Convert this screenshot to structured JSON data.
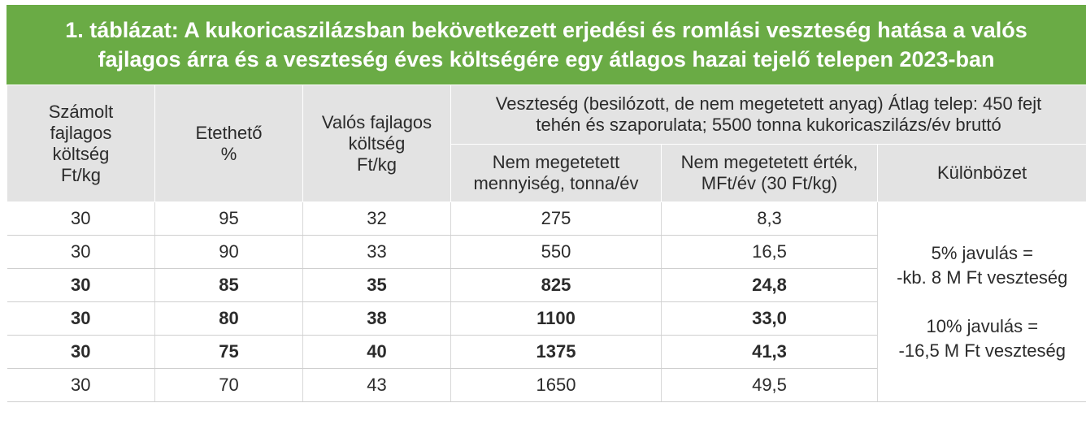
{
  "title": {
    "line1": "1. táblázat: A kukoricaszilázsban bekövetkezett erjedési és romlási veszteség hatása a valós",
    "line2": "fajlagos árra és a veszteség éves költségére egy átlagos hazai tejelő telepen 2023-ban"
  },
  "headers": {
    "col1": [
      "Számolt",
      "fajlagos",
      "költség",
      "Ft/kg"
    ],
    "col2": [
      "Etethető",
      "%"
    ],
    "col3": [
      "Valós fajlagos",
      "költség",
      "Ft/kg"
    ],
    "group": [
      "Veszteség (besilózott, de nem megetetett anyag) Átlag telep: 450 fejt",
      "tehén és szaporulata; 5500 tonna kukoricaszilázs/év bruttó"
    ],
    "sub1": [
      "Nem megetetett",
      "mennyiség, tonna/év"
    ],
    "sub2": [
      "Nem megetetett  érték,",
      "MFt/év (30 Ft/kg)"
    ],
    "sub3": [
      "Különbözet"
    ]
  },
  "rows": [
    {
      "cost": "30",
      "feedable": "95",
      "real": "32",
      "qty": "275",
      "value": "8,3",
      "bold": false
    },
    {
      "cost": "30",
      "feedable": "90",
      "real": "33",
      "qty": "550",
      "value": "16,5",
      "bold": false
    },
    {
      "cost": "30",
      "feedable": "85",
      "real": "35",
      "qty": "825",
      "value": "24,8",
      "bold": true
    },
    {
      "cost": "30",
      "feedable": "80",
      "real": "38",
      "qty": "1100",
      "value": "33,0",
      "bold": true
    },
    {
      "cost": "30",
      "feedable": "75",
      "real": "40",
      "qty": "1375",
      "value": "41,3",
      "bold": true
    },
    {
      "cost": "30",
      "feedable": "70",
      "real": "43",
      "qty": "1650",
      "value": "49,5",
      "bold": false
    }
  ],
  "difference_note": {
    "a1": "5% javulás =",
    "a2": "-kb. 8 M Ft veszteség",
    "b1": "10% javulás =",
    "b2": "-16,5 M Ft veszteség"
  },
  "colors": {
    "title_bg": "#6aab45",
    "header_bg": "#e3e3e3"
  }
}
